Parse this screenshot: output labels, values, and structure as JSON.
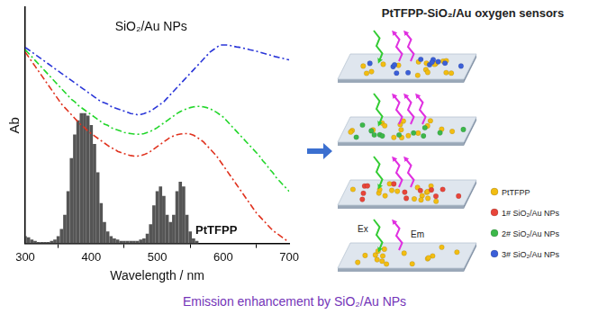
{
  "chart_data": {
    "type": "line",
    "x_label": "Wavelength / nm",
    "y_label": "Ab",
    "xlim": [
      300,
      700
    ],
    "xticks": [
      300,
      400,
      500,
      600,
      700
    ],
    "ylim": [
      0,
      1
    ],
    "grid": false,
    "tick_labels": "x",
    "annotations": [
      "SiO₂/Au NPs",
      "PtTFPP"
    ],
    "x": [
      300,
      305,
      310,
      315,
      320,
      325,
      330,
      335,
      340,
      345,
      350,
      355,
      360,
      365,
      370,
      375,
      380,
      385,
      390,
      395,
      400,
      405,
      410,
      415,
      420,
      425,
      430,
      435,
      440,
      445,
      450,
      455,
      460,
      465,
      470,
      475,
      480,
      485,
      490,
      495,
      500,
      505,
      510,
      515,
      520,
      525,
      530,
      535,
      540,
      545,
      550,
      555,
      560,
      565,
      570,
      575,
      580,
      585,
      590,
      595,
      600,
      605,
      610,
      615,
      620,
      625,
      630,
      635,
      640,
      645,
      650,
      655,
      660,
      665,
      670,
      675,
      680,
      685,
      690,
      695,
      700
    ],
    "series": [
      {
        "color": "#e0321e",
        "line_style": "dashdot",
        "values": [
          0.81,
          0.79,
          0.77,
          0.75,
          0.73,
          0.71,
          0.69,
          0.67,
          0.65,
          0.63,
          0.61,
          0.59,
          0.575,
          0.56,
          0.545,
          0.53,
          0.515,
          0.5,
          0.49,
          0.475,
          0.465,
          0.455,
          0.445,
          0.435,
          0.425,
          0.415,
          0.405,
          0.4,
          0.39,
          0.385,
          0.38,
          0.375,
          0.372,
          0.37,
          0.37,
          0.372,
          0.376,
          0.382,
          0.39,
          0.4,
          0.41,
          0.42,
          0.43,
          0.44,
          0.45,
          0.455,
          0.46,
          0.463,
          0.465,
          0.465,
          0.463,
          0.458,
          0.45,
          0.44,
          0.43,
          0.415,
          0.4,
          0.385,
          0.37,
          0.35,
          0.33,
          0.31,
          0.29,
          0.27,
          0.25,
          0.23,
          0.21,
          0.19,
          0.17,
          0.15,
          0.13,
          0.115,
          0.1,
          0.085,
          0.07,
          0.055,
          0.045,
          0.035,
          0.025,
          0.015,
          0.01
        ]
      },
      {
        "color": "#22d62a",
        "line_style": "dashdot",
        "values": [
          0.82,
          0.805,
          0.79,
          0.775,
          0.76,
          0.745,
          0.73,
          0.715,
          0.7,
          0.685,
          0.67,
          0.655,
          0.64,
          0.625,
          0.61,
          0.6,
          0.585,
          0.575,
          0.565,
          0.555,
          0.545,
          0.535,
          0.525,
          0.515,
          0.505,
          0.5,
          0.49,
          0.485,
          0.48,
          0.475,
          0.47,
          0.467,
          0.465,
          0.463,
          0.462,
          0.463,
          0.465,
          0.47,
          0.475,
          0.482,
          0.49,
          0.5,
          0.51,
          0.52,
          0.53,
          0.54,
          0.55,
          0.558,
          0.565,
          0.57,
          0.575,
          0.578,
          0.58,
          0.58,
          0.578,
          0.575,
          0.57,
          0.563,
          0.555,
          0.545,
          0.535,
          0.52,
          0.505,
          0.49,
          0.475,
          0.46,
          0.445,
          0.43,
          0.415,
          0.4,
          0.385,
          0.37,
          0.35,
          0.335,
          0.315,
          0.3,
          0.28,
          0.265,
          0.25,
          0.235,
          0.22
        ]
      },
      {
        "color": "#2a36d8",
        "line_style": "dashdot",
        "values": [
          0.83,
          0.82,
          0.81,
          0.8,
          0.79,
          0.78,
          0.77,
          0.76,
          0.75,
          0.74,
          0.73,
          0.72,
          0.71,
          0.7,
          0.69,
          0.68,
          0.67,
          0.66,
          0.65,
          0.64,
          0.63,
          0.62,
          0.61,
          0.6,
          0.595,
          0.59,
          0.58,
          0.575,
          0.57,
          0.565,
          0.56,
          0.555,
          0.55,
          0.548,
          0.545,
          0.546,
          0.55,
          0.555,
          0.56,
          0.57,
          0.58,
          0.59,
          0.6,
          0.615,
          0.63,
          0.645,
          0.66,
          0.675,
          0.69,
          0.705,
          0.72,
          0.735,
          0.75,
          0.765,
          0.78,
          0.795,
          0.81,
          0.82,
          0.83,
          0.84,
          0.84,
          0.84,
          0.838,
          0.835,
          0.832,
          0.83,
          0.827,
          0.824,
          0.82,
          0.817,
          0.814,
          0.81,
          0.806,
          0.802,
          0.798,
          0.794,
          0.79,
          0.787,
          0.784,
          0.78,
          0.777
        ]
      },
      {
        "type": "bar",
        "color": "#555555",
        "values": [
          0.03,
          0.025,
          0.015,
          0.01,
          0.005,
          0.005,
          0.005,
          0.005,
          0.01,
          0.015,
          0.03,
          0.06,
          0.12,
          0.22,
          0.36,
          0.46,
          0.52,
          0.55,
          0.55,
          0.54,
          0.5,
          0.42,
          0.3,
          0.17,
          0.09,
          0.05,
          0.03,
          0.02,
          0.015,
          0.01,
          0.01,
          0.01,
          0.01,
          0.01,
          0.01,
          0.015,
          0.02,
          0.04,
          0.08,
          0.16,
          0.22,
          0.24,
          0.2,
          0.12,
          0.09,
          0.12,
          0.22,
          0.26,
          0.24,
          0.12,
          0.05,
          0.02,
          0.01,
          null,
          null,
          null,
          null,
          null,
          null,
          null,
          null,
          null,
          null,
          null,
          null,
          null,
          null,
          null,
          null,
          null,
          null,
          null,
          null,
          null,
          null,
          null,
          null,
          null,
          null,
          null,
          null
        ]
      }
    ]
  },
  "diagram": {
    "title": "PtTFPP-SiO₂/Au oxygen sensors",
    "excitation_label": "Ex",
    "emission_label": "Em",
    "legend": [
      {
        "label": "PtTFPP",
        "color": "#f2bd12"
      },
      {
        "label": "1# SiO₂/Au NPs",
        "color": "#e8453a"
      },
      {
        "label": "2# SiO₂/Au NPs",
        "color": "#3cb84a"
      },
      {
        "label": "3# SiO₂/Au NPs",
        "color": "#3b5fd8"
      }
    ]
  },
  "caption": "Emission enhancement by SiO₂/Au NPs"
}
